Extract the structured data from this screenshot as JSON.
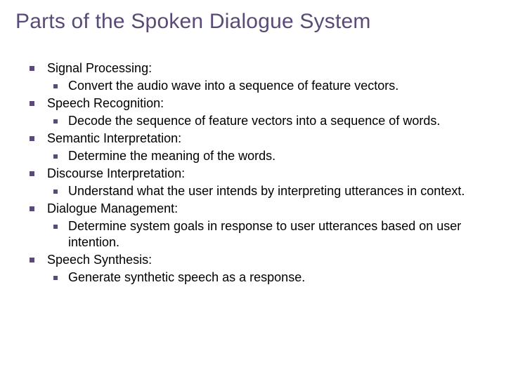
{
  "title": "Parts of the Spoken Dialogue System",
  "colors": {
    "title_color": "#5a4a78",
    "bullet_color": "#5a4a78",
    "text_color": "#000000",
    "background": "#ffffff"
  },
  "typography": {
    "title_fontsize": 30,
    "body_fontsize": 18,
    "font_family": "Century Gothic"
  },
  "items": [
    {
      "label": "Signal Processing:",
      "sub": [
        "Convert the audio wave into a sequence of feature vectors."
      ]
    },
    {
      "label": "Speech Recognition:",
      "sub": [
        "Decode the sequence of feature vectors into a sequence of words."
      ]
    },
    {
      "label": "Semantic Interpretation:",
      "sub": [
        "Determine the meaning of the words."
      ]
    },
    {
      "label": "Discourse Interpretation:",
      "sub": [
        "Understand what the user intends by interpreting utterances in context."
      ]
    },
    {
      "label": "Dialogue Management:",
      "sub": [
        "Determine system goals in response to user utterances based on user intention."
      ]
    },
    {
      "label": "Speech Synthesis:",
      "sub": [
        "Generate synthetic speech as a response."
      ]
    }
  ]
}
